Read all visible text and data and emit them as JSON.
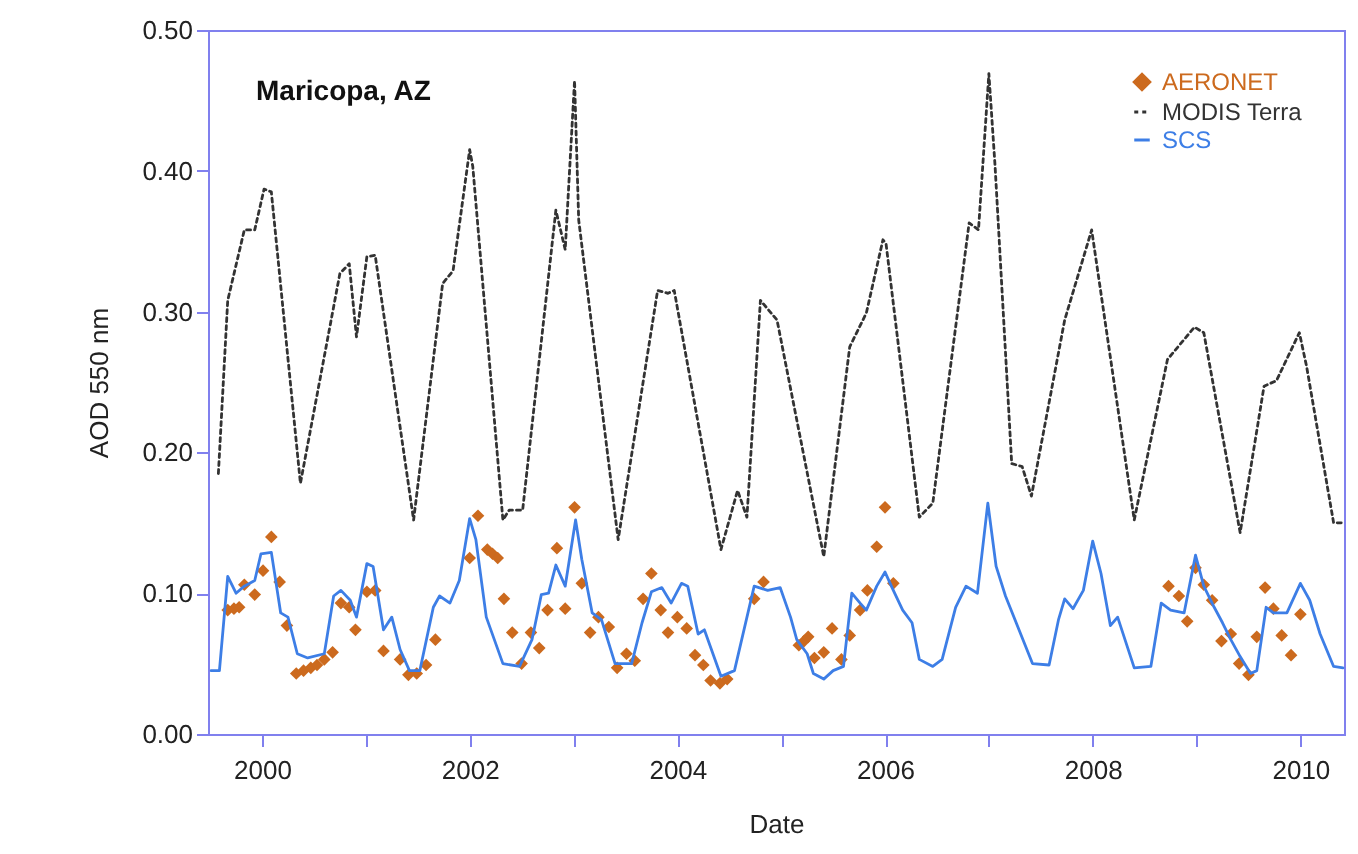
{
  "chart_data": {
    "type": "line",
    "xlabel": "Date",
    "ylabel": "AOD 550 nm",
    "annotations": [
      "Maricopa, AZ"
    ],
    "xlim": [
      1999.48,
      2010.42
    ],
    "xticks": [
      2000,
      {
        "value": 2001,
        "label": null
      },
      2002,
      {
        "value": 2003,
        "label": null
      },
      2004,
      {
        "value": 2005,
        "label": null
      },
      2006,
      {
        "value": 2007,
        "label": null
      },
      2008,
      {
        "value": 2009,
        "label": null
      },
      2010
    ],
    "ylim": [
      0,
      0.5
    ],
    "yticks": [
      {
        "value": 0,
        "label": "0.00"
      },
      {
        "value": 0.1,
        "label": "0.10"
      },
      {
        "value": 0.2,
        "label": "0.20"
      },
      {
        "value": 0.3,
        "label": "0.30"
      },
      {
        "value": 0.4,
        "label": "0.40"
      },
      {
        "value": 0.5,
        "label": "0.50"
      }
    ],
    "legend": "top right",
    "series": [
      {
        "name": "AERONET",
        "type": "scatter",
        "marker": "diamond",
        "color": "#cc6a1e",
        "x": [
          1999.67,
          1999.73,
          1999.78,
          1999.83,
          1999.93,
          2000.01,
          2000.09,
          2000.17,
          2000.24,
          2000.33,
          2000.4,
          2000.47,
          2000.53,
          2000.6,
          2000.68,
          2000.76,
          2000.84,
          2000.9,
          2001.01,
          2001.09,
          2001.17,
          2001.33,
          2001.41,
          2001.49,
          2001.58,
          2001.67,
          2002.0,
          2002.08,
          2002.17,
          2002.22,
          2002.27,
          2002.33,
          2002.41,
          2002.5,
          2002.59,
          2002.67,
          2002.75,
          2002.84,
          2002.92,
          2003.01,
          2003.08,
          2003.16,
          2003.24,
          2003.34,
          2003.42,
          2003.51,
          2003.59,
          2003.67,
          2003.75,
          2003.84,
          2003.91,
          2004.0,
          2004.09,
          2004.17,
          2004.25,
          2004.32,
          2004.41,
          2004.48,
          2004.74,
          2004.83,
          2005.17,
          2005.22,
          2005.26,
          2005.32,
          2005.41,
          2005.49,
          2005.58,
          2005.66,
          2005.76,
          2005.83,
          2005.92,
          2006.0,
          2006.08,
          2008.73,
          2008.83,
          2008.91,
          2008.99,
          2009.07,
          2009.15,
          2009.24,
          2009.33,
          2009.41,
          2009.5,
          2009.58,
          2009.66,
          2009.74,
          2009.82,
          2009.91,
          2010.0
        ],
        "values": [
          0.088,
          0.089,
          0.09,
          0.106,
          0.099,
          0.116,
          0.14,
          0.108,
          0.077,
          0.043,
          0.045,
          0.047,
          0.049,
          0.053,
          0.058,
          0.093,
          0.09,
          0.074,
          0.101,
          0.102,
          0.059,
          0.053,
          0.042,
          0.043,
          0.049,
          0.067,
          0.125,
          0.155,
          0.131,
          0.128,
          0.125,
          0.096,
          0.072,
          0.05,
          0.072,
          0.061,
          0.088,
          0.132,
          0.089,
          0.161,
          0.107,
          0.072,
          0.083,
          0.076,
          0.047,
          0.057,
          0.052,
          0.096,
          0.114,
          0.088,
          0.072,
          0.083,
          0.075,
          0.056,
          0.049,
          0.038,
          0.036,
          0.039,
          0.096,
          0.108,
          0.063,
          0.066,
          0.069,
          0.054,
          0.058,
          0.075,
          0.053,
          0.07,
          0.088,
          0.102,
          0.133,
          0.161,
          0.107,
          0.105,
          0.098,
          0.08,
          0.118,
          0.106,
          0.095,
          0.066,
          0.071,
          0.05,
          0.042,
          0.069,
          0.104,
          0.089,
          0.07,
          0.056,
          0.085
        ]
      },
      {
        "name": "MODIS Terra",
        "line_style": "dotted",
        "color": "#333333",
        "x": [
          1999.58,
          1999.67,
          1999.83,
          1999.93,
          2000.02,
          2000.09,
          2000.37,
          2000.75,
          2000.84,
          2000.91,
          2001.01,
          2001.09,
          2001.46,
          2001.74,
          2001.84,
          2002.0,
          2002.03,
          2002.32,
          2002.38,
          2002.51,
          2002.83,
          2002.92,
          2003.01,
          2003.05,
          2003.43,
          2003.81,
          2003.91,
          2003.97,
          2004.42,
          2004.58,
          2004.67,
          2004.8,
          2004.96,
          2005.41,
          2005.66,
          2005.82,
          2005.98,
          2006.01,
          2006.33,
          2006.46,
          2006.81,
          2006.9,
          2007.0,
          2007.06,
          2007.22,
          2007.32,
          2007.41,
          2007.73,
          2007.99,
          2008.4,
          2008.72,
          2008.98,
          2009.07,
          2009.42,
          2009.65,
          2009.77,
          2009.99,
          2010.06,
          2010.32,
          2010.41
        ],
        "values": [
          0.185,
          0.308,
          0.358,
          0.358,
          0.387,
          0.385,
          0.178,
          0.327,
          0.334,
          0.282,
          0.339,
          0.34,
          0.152,
          0.32,
          0.329,
          0.415,
          0.403,
          0.152,
          0.159,
          0.159,
          0.372,
          0.344,
          0.464,
          0.365,
          0.138,
          0.315,
          0.313,
          0.315,
          0.131,
          0.173,
          0.154,
          0.308,
          0.294,
          0.126,
          0.275,
          0.299,
          0.351,
          0.348,
          0.154,
          0.164,
          0.363,
          0.358,
          0.469,
          0.403,
          0.192,
          0.19,
          0.169,
          0.294,
          0.358,
          0.152,
          0.266,
          0.289,
          0.285,
          0.143,
          0.247,
          0.251,
          0.285,
          0.261,
          0.15,
          0.15
        ]
      },
      {
        "name": "SCS",
        "line_style": "solid",
        "color": "#3d7ee6",
        "x": [
          1999.51,
          1999.59,
          1999.67,
          1999.75,
          1999.83,
          1999.93,
          1999.99,
          2000.09,
          2000.18,
          2000.25,
          2000.34,
          2000.44,
          2000.6,
          2000.69,
          2000.76,
          2000.85,
          2000.91,
          2001.01,
          2001.07,
          2001.17,
          2001.25,
          2001.33,
          2001.42,
          2001.52,
          2001.65,
          2001.71,
          2001.81,
          2001.9,
          2002.0,
          2002.06,
          2002.16,
          2002.32,
          2002.48,
          2002.6,
          2002.69,
          2002.76,
          2002.83,
          2002.92,
          2003.02,
          2003.08,
          2003.18,
          2003.27,
          2003.4,
          2003.56,
          2003.66,
          2003.75,
          2003.85,
          2003.94,
          2004.04,
          2004.1,
          2004.2,
          2004.26,
          2004.42,
          2004.55,
          2004.74,
          2004.87,
          2004.99,
          2005.09,
          2005.15,
          2005.25,
          2005.31,
          2005.41,
          2005.5,
          2005.6,
          2005.68,
          2005.76,
          2005.82,
          2005.92,
          2006.0,
          2006.08,
          2006.17,
          2006.26,
          2006.33,
          2006.46,
          2006.55,
          2006.68,
          2006.78,
          2006.89,
          2006.99,
          2007.07,
          2007.16,
          2007.29,
          2007.42,
          2007.58,
          2007.67,
          2007.73,
          2007.81,
          2007.91,
          2008.0,
          2008.08,
          2008.17,
          2008.24,
          2008.4,
          2008.56,
          2008.66,
          2008.75,
          2008.88,
          2008.99,
          2009.07,
          2009.17,
          2009.25,
          2009.33,
          2009.42,
          2009.52,
          2009.58,
          2009.67,
          2009.74,
          2009.87,
          2010.0,
          2010.09,
          2010.19,
          2010.32,
          2010.41
        ],
        "values": [
          0.045,
          0.045,
          0.112,
          0.1,
          0.105,
          0.109,
          0.128,
          0.129,
          0.086,
          0.083,
          0.057,
          0.054,
          0.057,
          0.098,
          0.102,
          0.095,
          0.083,
          0.121,
          0.119,
          0.074,
          0.083,
          0.06,
          0.045,
          0.045,
          0.09,
          0.098,
          0.093,
          0.109,
          0.153,
          0.138,
          0.083,
          0.05,
          0.048,
          0.067,
          0.099,
          0.1,
          0.12,
          0.105,
          0.152,
          0.124,
          0.086,
          0.081,
          0.05,
          0.05,
          0.079,
          0.101,
          0.104,
          0.093,
          0.107,
          0.105,
          0.071,
          0.074,
          0.041,
          0.045,
          0.105,
          0.102,
          0.104,
          0.083,
          0.067,
          0.057,
          0.043,
          0.039,
          0.045,
          0.048,
          0.1,
          0.093,
          0.088,
          0.105,
          0.115,
          0.102,
          0.088,
          0.079,
          0.053,
          0.048,
          0.053,
          0.09,
          0.105,
          0.1,
          0.164,
          0.119,
          0.098,
          0.074,
          0.05,
          0.049,
          0.081,
          0.096,
          0.089,
          0.102,
          0.137,
          0.114,
          0.077,
          0.083,
          0.047,
          0.048,
          0.093,
          0.088,
          0.086,
          0.127,
          0.105,
          0.09,
          0.079,
          0.067,
          0.055,
          0.043,
          0.045,
          0.09,
          0.086,
          0.086,
          0.107,
          0.095,
          0.071,
          0.048,
          0.047
        ]
      }
    ]
  }
}
